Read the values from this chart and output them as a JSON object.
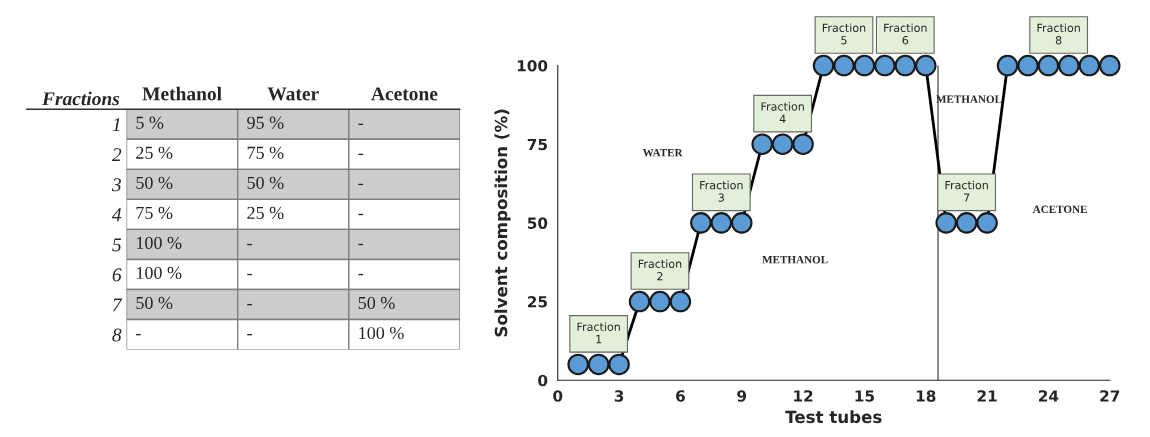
{
  "chart_data": [
    {
      "type": "heatmap",
      "ylabel": "Fractions",
      "categories": [
        "Methanol",
        "Water",
        "Acetone"
      ],
      "y_categories": [
        "1",
        "2",
        "3",
        "4",
        "5",
        "6",
        "7",
        "8"
      ],
      "cells": [
        [
          5,
          95,
          null
        ],
        [
          25,
          75,
          null
        ],
        [
          50,
          50,
          null
        ],
        [
          75,
          25,
          null
        ],
        [
          100,
          null,
          null
        ],
        [
          100,
          null,
          null
        ],
        [
          50,
          null,
          50
        ],
        [
          null,
          null,
          100
        ]
      ],
      "cell_labels": [
        [
          "5 %",
          "95 %",
          "-"
        ],
        [
          "25 %",
          "75 %",
          "-"
        ],
        [
          "50 %",
          "50 %",
          "-"
        ],
        [
          "75 %",
          "25 %",
          "-"
        ],
        [
          "100 %",
          "-",
          "-"
        ],
        [
          "100 %",
          "-",
          "-"
        ],
        [
          "50 %",
          "-",
          "50 %"
        ],
        [
          "-",
          "-",
          "100 %"
        ]
      ],
      "colors": [
        "#cccccc",
        "#ffffff"
      ]
    },
    {
      "type": "line",
      "xlabel": "Test tubes",
      "ylabel": "Solvent composition (%)",
      "x": [
        1,
        2,
        3,
        4,
        5,
        6,
        7,
        8,
        9,
        10,
        11,
        12,
        13,
        14,
        15,
        16,
        17,
        18,
        19,
        20,
        21,
        22,
        23,
        24,
        25,
        26,
        27
      ],
      "series": [
        {
          "color": "#5b9bd5",
          "values": [
            5,
            5,
            5,
            25,
            25,
            25,
            50,
            50,
            50,
            75,
            75,
            75,
            100,
            100,
            100,
            100,
            100,
            100,
            50,
            50,
            50,
            100,
            100,
            100,
            100,
            100,
            100
          ]
        }
      ],
      "marker": "circle",
      "line_style": "solid",
      "grid": false,
      "xlim": [
        0,
        27
      ],
      "xticks": [
        0,
        3,
        6,
        9,
        12,
        15,
        18,
        21,
        24,
        27
      ],
      "ylim": [
        0,
        100
      ],
      "yticks": [
        0,
        25,
        50,
        75,
        100
      ],
      "ref_lines": [
        {
          "axis": "x",
          "value": 18.6,
          "color": "#595959"
        }
      ],
      "annotations": [
        {
          "text": "Fraction\n1",
          "x": 2,
          "y": 5
        },
        {
          "text": "Fraction\n2",
          "x": 5,
          "y": 25
        },
        {
          "text": "Fraction\n3",
          "x": 8,
          "y": 50
        },
        {
          "text": "Fraction\n4",
          "x": 11,
          "y": 75
        },
        {
          "text": "Fraction\n5",
          "x": 14,
          "y": 100
        },
        {
          "text": "Fraction\n6",
          "x": 17,
          "y": 100
        },
        {
          "text": "Fraction\n7",
          "x": 20,
          "y": 50
        },
        {
          "text": "Fraction\n8",
          "x": 24.5,
          "y": 100
        },
        "WATER",
        "METHANOL",
        "METHANOL",
        "ACETONE"
      ]
    }
  ]
}
